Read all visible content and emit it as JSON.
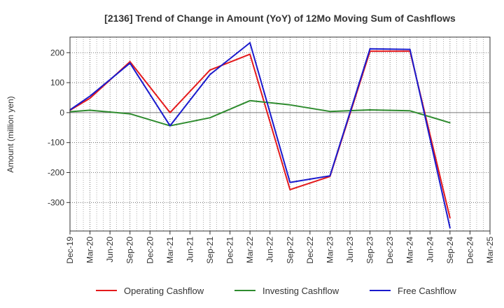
{
  "chart_data": {
    "type": "line",
    "title": "[2136]  Trend of Change in Amount (YoY) of 12Mo Moving Sum of Cashflows",
    "xlabel": "",
    "ylabel": "Amount (million yen)",
    "categories": [
      "Dec-19",
      "Mar-20",
      "Jun-20",
      "Sep-20",
      "Dec-20",
      "Mar-21",
      "Jun-21",
      "Sep-21",
      "Dec-21",
      "Mar-22",
      "Jun-22",
      "Sep-22",
      "Dec-22",
      "Mar-23",
      "Jun-23",
      "Sep-23",
      "Dec-23",
      "Mar-24",
      "Jun-24",
      "Sep-24",
      "Dec-24",
      "Mar-25"
    ],
    "ylim": [
      -395,
      252
    ],
    "yticks": [
      200,
      100,
      0,
      -100,
      -200,
      -300
    ],
    "ytick_labels": [
      "200",
      "100",
      "0",
      "-100",
      "-200",
      "-300"
    ],
    "grid": true,
    "legend_position": "bottom",
    "series": [
      {
        "name": "Operating Cashflow",
        "color": "#e41a1c",
        "values": [
          8,
          48,
          null,
          170,
          null,
          0,
          null,
          142,
          null,
          195,
          null,
          -257,
          null,
          -213,
          null,
          205,
          null,
          205,
          null,
          -352,
          null,
          null
        ]
      },
      {
        "name": "Investing Cashflow",
        "color": "#2e8b2e",
        "values": [
          3,
          8,
          null,
          -4,
          null,
          -44,
          null,
          -17,
          null,
          40,
          null,
          26,
          null,
          4,
          null,
          9,
          null,
          6,
          null,
          -34,
          null,
          null
        ]
      },
      {
        "name": "Free Cashflow",
        "color": "#1a1acd",
        "values": [
          9,
          55,
          null,
          165,
          null,
          -44,
          null,
          127,
          null,
          233,
          null,
          -233,
          null,
          -211,
          null,
          213,
          null,
          211,
          null,
          -385,
          null,
          null
        ]
      }
    ]
  }
}
